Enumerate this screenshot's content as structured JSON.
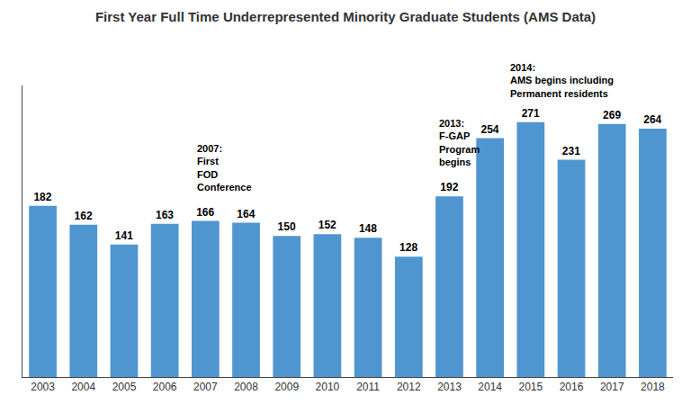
{
  "chart_data": {
    "type": "bar",
    "title": "First Year Full Time Underrepresented Minority Graduate Students (AMS Data)",
    "categories": [
      "2003",
      "2004",
      "2005",
      "2006",
      "2007",
      "2008",
      "2009",
      "2010",
      "2011",
      "2012",
      "2013",
      "2014",
      "2015",
      "2016",
      "2017",
      "2018"
    ],
    "values": [
      182,
      162,
      141,
      163,
      166,
      164,
      150,
      152,
      148,
      128,
      192,
      254,
      271,
      231,
      269,
      264
    ],
    "color": "#4f96d0",
    "ylim": [
      0,
      310
    ],
    "grid": false,
    "tick_labels": "x",
    "data_labels": true,
    "annotations": [
      {
        "text": "2007:\nFirst\nFOD\nConference",
        "category": "2007"
      },
      {
        "text": "2013:\nF-GAP\nProgram\nbegins",
        "category": "2013"
      },
      {
        "text": "2014:\nAMS begins including\nPermanent residents",
        "category": "2014"
      }
    ]
  }
}
